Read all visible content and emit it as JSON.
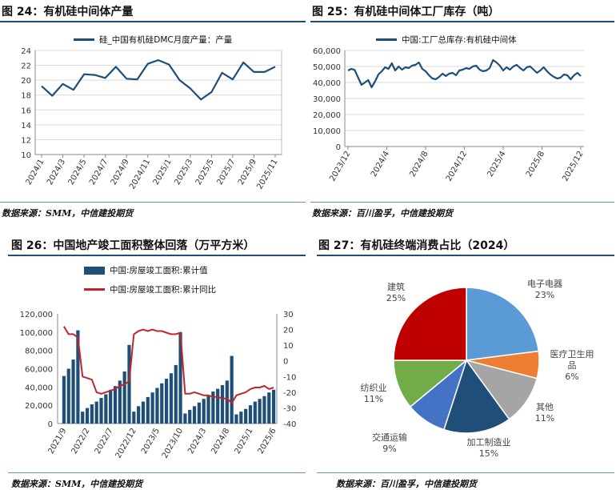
{
  "chart_data": [
    {
      "type": "line",
      "title": "图 24：有机硅中间体产量",
      "source": "数据来源：SMM，中信建投期货",
      "series": [
        {
          "name": "硅_中国有机硅DMC月度产量：产量",
          "color": "#1f4e79",
          "values": [
            19.2,
            17.9,
            19.5,
            18.7,
            20.8,
            20.7,
            20.3,
            21.8,
            20.2,
            20.1,
            22.2,
            22.7,
            22.1,
            20.0,
            18.9,
            17.4,
            18.4,
            21.0,
            20.1,
            22.4,
            21.1,
            21.1,
            21.8
          ]
        }
      ],
      "x": [
        "2024/1",
        "2024/2",
        "2024/3",
        "2024/4",
        "2024/5",
        "2024/6",
        "2024/7",
        "2024/8",
        "2024/9",
        "2024/10",
        "2024/11",
        "2024/12",
        "2025/1",
        "2025/2",
        "2025/3",
        "2025/4",
        "2025/5",
        "2025/6",
        "2025/7",
        "2025/8",
        "2025/9",
        "2025/10",
        "2025/11"
      ],
      "xticks": [
        "2024/1",
        "2024/3",
        "2024/5",
        "2024/7",
        "2024/9",
        "2024/11",
        "2025/1",
        "2025/3",
        "2025/5",
        "2025/7",
        "2025/9",
        "2025/11"
      ],
      "yticks": [
        10,
        12,
        14,
        16,
        18,
        20,
        22,
        24
      ],
      "ylim": [
        10,
        24
      ]
    },
    {
      "type": "line",
      "title": "图 25：有机硅中间体工厂库存（吨）",
      "source": "数据来源：百川盈孚，中信建投期货",
      "series": [
        {
          "name": "中国:工厂总库存:有机硅中间体",
          "color": "#1f4e79",
          "values": [
            47500,
            48500,
            47800,
            43000,
            38500,
            40000,
            41500,
            37000,
            40500,
            45000,
            47000,
            49500,
            48500,
            52000,
            47500,
            50000,
            48000,
            49500,
            49000,
            50500,
            51000,
            52500,
            48500,
            47000,
            44500,
            42500,
            42000,
            43500,
            45500,
            44000,
            45500,
            46000,
            44500,
            47500,
            48000,
            49000,
            48500,
            50000,
            50500,
            48000,
            47000,
            47500,
            49000,
            54000,
            52500,
            50500,
            47500,
            49500,
            48000,
            50000,
            51000,
            49000,
            47500,
            49500,
            50000,
            48000,
            46000,
            47500,
            49500,
            47000,
            45000,
            43500,
            42500,
            43000,
            45000,
            44500,
            42000,
            44500,
            46000,
            44000
          ]
        }
      ],
      "x_start": "2023/12",
      "x_end": "2025/12",
      "xticks": [
        "2023/12",
        "2024/4",
        "2024/8",
        "2024/12",
        "2025/4",
        "2025/8",
        "2025/12"
      ],
      "yticks": [
        "0",
        "10,000",
        "20,000",
        "30,000",
        "40,000",
        "50,000",
        "60,000"
      ],
      "ylim": [
        0,
        60000
      ]
    },
    {
      "type": "bar",
      "title": "图 26：中国地产竣工面积整体回落（万平方米）",
      "source": "数据来源：SMM，中信建投期货",
      "series": [
        {
          "name": "中国:房屋竣工面积:累计值",
          "color": "#1f4e79",
          "axis": "left",
          "values": [
            52000,
            60000,
            70000,
            102000,
            13000,
            17000,
            21000,
            24000,
            28000,
            32000,
            37000,
            41000,
            47000,
            57000,
            86000,
            13000,
            19000,
            24000,
            29000,
            34000,
            39000,
            44000,
            49000,
            55000,
            64000,
            100000,
            11000,
            15000,
            19000,
            23000,
            27000,
            31000,
            35000,
            38000,
            42000,
            47000,
            74000,
            10000,
            13000,
            16000,
            20000,
            24000,
            27000,
            30000,
            34000,
            37000
          ]
        },
        {
          "name": "中国:房屋竣工面积:累计同比",
          "color": "#c0262c",
          "axis": "right",
          "values": [
            22,
            17,
            17,
            15,
            -10,
            -11,
            -12,
            -20,
            -21,
            -20,
            -19,
            -18,
            -16,
            -15,
            -13,
            17,
            19,
            20,
            19,
            20,
            19,
            19,
            18,
            17,
            17,
            18,
            -21,
            -21,
            -20,
            -21,
            -22,
            -22,
            -23,
            -23,
            -24,
            -24,
            -27,
            -22,
            -21,
            -20,
            -18,
            -17,
            -17,
            -16,
            -18,
            -17
          ]
        }
      ],
      "xticks": [
        "2021/9",
        "2022/2",
        "2022/7",
        "2022/12",
        "2023/5",
        "2023/10",
        "2024/3",
        "2024/8",
        "2025/1",
        "2025/6"
      ],
      "yticks_left": [
        "0",
        "20,000",
        "40,000",
        "60,000",
        "80,000",
        "100,000",
        "120,000"
      ],
      "yticks_right": [
        "-40",
        "-30",
        "-20",
        "-10",
        "0",
        "10",
        "20",
        "30"
      ],
      "ylim": [
        0,
        120000
      ],
      "ylim_right": [
        -40,
        30
      ]
    },
    {
      "type": "pie",
      "title": "图 27：有机硅终端消费占比（2024）",
      "source": "数据来源：百川盈孚，中信建投期货",
      "slices": [
        {
          "label": "电子电器",
          "value": 23,
          "pct": "23%",
          "color": "#5b9bd5"
        },
        {
          "label": "医疗卫生用品",
          "value": 6,
          "pct": "6%",
          "color": "#ed7d31"
        },
        {
          "label": "其他",
          "value": 11,
          "pct": "11%",
          "color": "#a5a5a5"
        },
        {
          "label": "加工制造业",
          "value": 15,
          "pct": "15%",
          "color": "#1f4e79"
        },
        {
          "label": "交通运输",
          "value": 9,
          "pct": "9%",
          "color": "#4472c4"
        },
        {
          "label": "纺织业",
          "value": 11,
          "pct": "11%",
          "color": "#70ad47"
        },
        {
          "label": "建筑",
          "value": 25,
          "pct": "25%",
          "color": "#c00000"
        }
      ]
    }
  ]
}
